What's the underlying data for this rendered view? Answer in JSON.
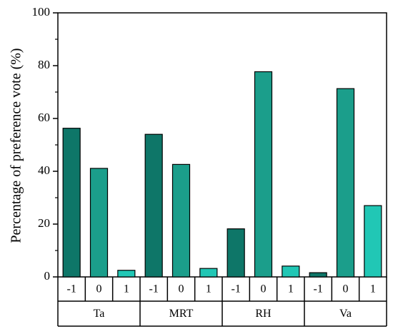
{
  "chart_data": {
    "type": "bar",
    "ylabel": "Percentage of preference vote (%)",
    "ylim": [
      0,
      100
    ],
    "yticks": [
      "0",
      "20",
      "40",
      "60",
      "80",
      "100"
    ],
    "categories": [
      "-1",
      "0",
      "1"
    ],
    "colors": {
      "-1": "#0e7668",
      "0": "#1b9e8b",
      "1": "#21c7b5"
    },
    "groups": [
      {
        "label": "Ta",
        "values": [
          56.3,
          41.1,
          2.5
        ]
      },
      {
        "label": "MRT",
        "values": [
          54.0,
          42.6,
          3.2
        ]
      },
      {
        "label": "RH",
        "values": [
          18.2,
          77.7,
          4.1
        ]
      },
      {
        "label": "Va",
        "values": [
          1.6,
          71.3,
          27.0
        ]
      }
    ],
    "grid": false
  }
}
